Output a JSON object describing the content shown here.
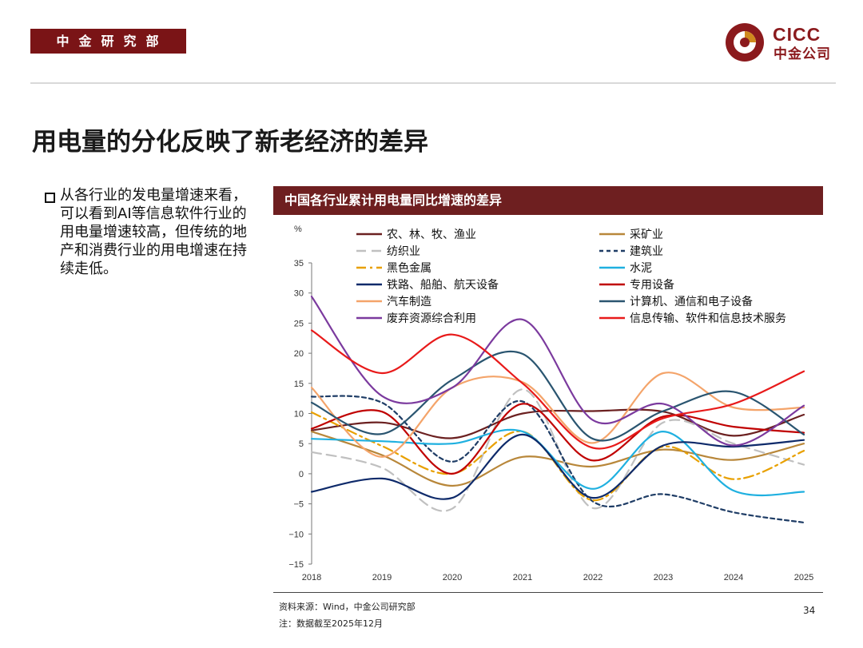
{
  "header": {
    "dept": "中金研究部",
    "logo_en": "CICC",
    "logo_cn": "中金公司"
  },
  "title": "用电量的分化反映了新老经济的差异",
  "bullet": "从各行业的发电量增速来看，可以看到AI等信息软件行业的用电量增速较高，但传统的地产和消费行业的用电增速在持续走低。",
  "chart_title": "中国各行业累计用电量同比增速的差异",
  "footer": {
    "source": "资料来源：Wind，中金公司研究部",
    "note": "注：数据截至2025年12月",
    "page": "34"
  },
  "chart_data": {
    "type": "line",
    "ylabel": "%",
    "ylim": [
      -15,
      35
    ],
    "yticks": [
      -15,
      -10,
      -5,
      0,
      5,
      10,
      15,
      20,
      25,
      30,
      35
    ],
    "ytick_labels": [
      "−15",
      "−10",
      "−5",
      "0",
      "5",
      "10",
      "15",
      "20",
      "25",
      "30",
      "35"
    ],
    "x_labels": [
      "2018",
      "2019",
      "2020",
      "2021",
      "2022",
      "2023",
      "2024",
      "2025"
    ],
    "x_range": [
      2018,
      2025
    ],
    "series": [
      {
        "name": "农、林、牧、渔业",
        "color": "#6b2020",
        "dash": "solid",
        "x": [
          2018,
          2019,
          2020,
          2021,
          2022,
          2023,
          2024,
          2025
        ],
        "values": [
          7.2,
          8.5,
          5.9,
          10.0,
          10.4,
          10.3,
          6.3,
          9.8
        ]
      },
      {
        "name": "采矿业",
        "color": "#b8873a",
        "dash": "solid",
        "x": [
          2018,
          2019,
          2020,
          2021,
          2022,
          2023,
          2024,
          2025
        ],
        "values": [
          7.0,
          3.1,
          -2.0,
          2.8,
          1.2,
          4.0,
          2.3,
          5.0
        ]
      },
      {
        "name": "纺织业",
        "color": "#c0c0c0",
        "dash": "longdash",
        "x": [
          2018,
          2019,
          2020,
          2021,
          2022,
          2023,
          2024,
          2025
        ],
        "values": [
          3.6,
          1.0,
          -5.8,
          14.0,
          -5.7,
          8.5,
          5.0,
          1.5
        ]
      },
      {
        "name": "建筑业",
        "color": "#1f3d66",
        "dash": "shortdash",
        "x": [
          2018,
          2019,
          2020,
          2021,
          2022,
          2023,
          2024,
          2025
        ],
        "values": [
          12.8,
          11.8,
          2.0,
          12.0,
          -4.6,
          -3.4,
          -6.4,
          -8.1
        ]
      },
      {
        "name": "黑色金属",
        "color": "#e8a000",
        "dash": "dashdot",
        "x": [
          2018,
          2019,
          2020,
          2021,
          2022,
          2023,
          2024,
          2025
        ],
        "values": [
          10.2,
          4.6,
          0.0,
          7.0,
          -4.4,
          4.5,
          -0.9,
          3.8
        ]
      },
      {
        "name": "水泥",
        "color": "#1fb0e0",
        "dash": "solid",
        "x": [
          2018,
          2019,
          2020,
          2021,
          2022,
          2023,
          2024,
          2025
        ],
        "values": [
          5.8,
          5.4,
          5.0,
          7.0,
          -2.5,
          7.0,
          -2.8,
          -3.0
        ]
      },
      {
        "name": "铁路、船舶、航天设备",
        "color": "#0e2a6a",
        "dash": "solid",
        "x": [
          2018,
          2019,
          2020,
          2021,
          2022,
          2023,
          2024,
          2025
        ],
        "values": [
          -3.0,
          -0.8,
          -4.0,
          6.5,
          -4.0,
          4.7,
          4.5,
          5.6
        ]
      },
      {
        "name": "专用设备",
        "color": "#c00000",
        "dash": "solid",
        "x": [
          2018,
          2019,
          2020,
          2021,
          2022,
          2023,
          2024,
          2025
        ],
        "values": [
          7.5,
          10.3,
          0.0,
          11.6,
          2.2,
          9.5,
          7.8,
          6.8
        ]
      },
      {
        "name": "汽车制造",
        "color": "#f4a46a",
        "dash": "solid",
        "x": [
          2018,
          2019,
          2020,
          2021,
          2022,
          2023,
          2024,
          2025
        ],
        "values": [
          14.3,
          2.8,
          14.3,
          15.2,
          5.1,
          16.7,
          11.0,
          11.0
        ]
      },
      {
        "name": "计算机、通信和电子设备",
        "color": "#2a5570",
        "dash": "solid",
        "x": [
          2018,
          2019,
          2020,
          2021,
          2022,
          2023,
          2024,
          2025
        ],
        "values": [
          11.8,
          6.6,
          15.6,
          19.9,
          5.8,
          10.4,
          13.6,
          6.5
        ]
      },
      {
        "name": "废弃资源综合利用",
        "color": "#7b3a9e",
        "dash": "solid",
        "x": [
          2018,
          2019,
          2020,
          2021,
          2022,
          2023,
          2024,
          2025
        ],
        "values": [
          29.4,
          12.9,
          14.3,
          25.6,
          8.9,
          11.6,
          4.7,
          11.3
        ]
      },
      {
        "name": "信息传输、软件和信息技术服务",
        "color": "#e81a1a",
        "dash": "solid",
        "x": [
          2018,
          2019,
          2020,
          2021,
          2022,
          2023,
          2024,
          2025
        ],
        "values": [
          23.8,
          16.7,
          23.1,
          15.0,
          4.3,
          9.2,
          11.6,
          17.0
        ]
      }
    ]
  }
}
